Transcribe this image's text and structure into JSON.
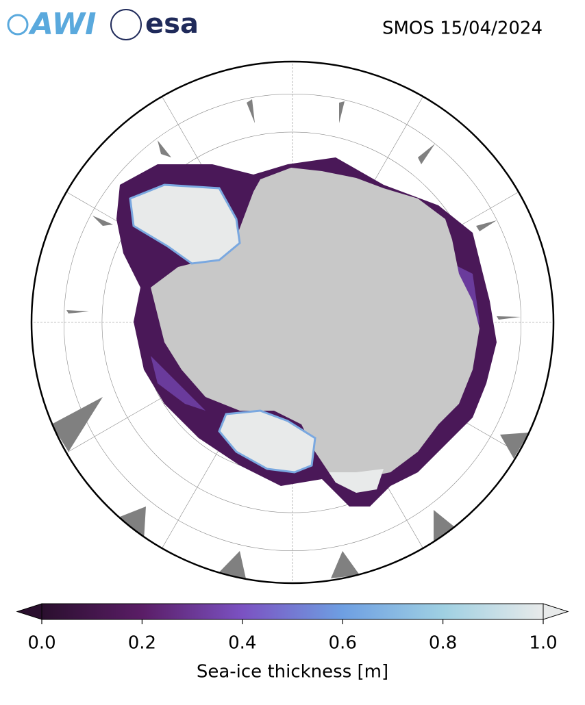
{
  "header": {
    "logos": [
      "AWI",
      "esa"
    ],
    "title": "SMOS 15/04/2024"
  },
  "colorbar": {
    "label": "Sea-ice thickness [m]",
    "lim": [
      0,
      1
    ],
    "ticks": [
      {
        "value": 0,
        "label": "0.0"
      },
      0.2,
      0.4,
      0.6,
      0.8,
      {
        "value": 1,
        "label": "1.0"
      }
    ],
    "colors": [
      "#2a0f2e",
      "#5a1d66",
      "#7b52c2",
      "#6e9fe2",
      "#9fd0e2",
      "#e8eaea"
    ]
  }
}
